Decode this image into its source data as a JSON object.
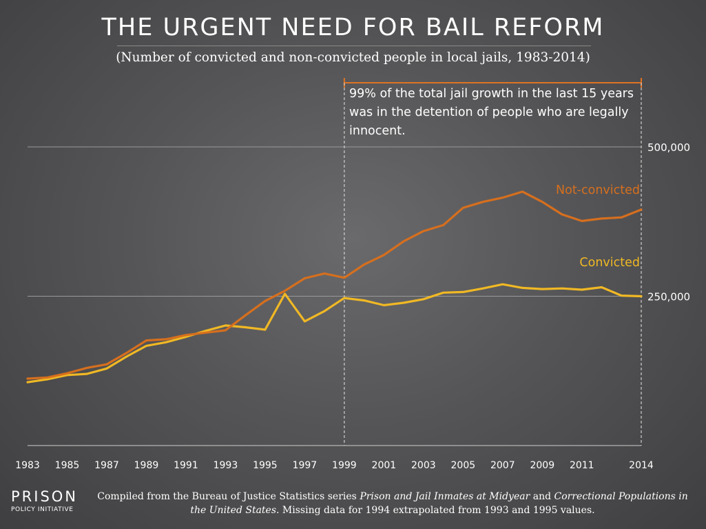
{
  "header": {
    "title": "THE URGENT NEED FOR BAIL REFORM",
    "subtitle": "(Number of convicted and non-convicted people in local jails, 1983-2014)"
  },
  "annotation": {
    "text": "99% of the total jail growth in the last 15 years was in the detention of people who are legally innocent."
  },
  "logo": {
    "top": "PRISON",
    "bottom": "POLICY INITIATIVE"
  },
  "footnote": {
    "part1": "Compiled from the Bureau of Justice Statistics series ",
    "italic1": "Prison and Jail Inmates at Midyear",
    "part2": " and ",
    "italic2": "Correctional Populations in the United States",
    "part3": ". Missing data for 1994 extrapolated from 1993 and 1995 values."
  },
  "colors": {
    "not_convicted": "#d66f1e",
    "convicted": "#f0b824",
    "bracket": "#e07322",
    "gridline": "#9a9a9a",
    "dashed": "#cfcfcf"
  },
  "chart_data": {
    "type": "line",
    "title": "THE URGENT NEED FOR BAIL REFORM",
    "x": [
      1983,
      1984,
      1985,
      1986,
      1987,
      1988,
      1989,
      1990,
      1991,
      1992,
      1993,
      1994,
      1995,
      1996,
      1997,
      1998,
      1999,
      2000,
      2001,
      2002,
      2003,
      2004,
      2005,
      2006,
      2007,
      2008,
      2009,
      2010,
      2011,
      2012,
      2013,
      2014
    ],
    "xlim": [
      1983,
      2014
    ],
    "ylim": [
      0,
      500000
    ],
    "x_tick_labels": [
      "1983",
      "1985",
      "1987",
      "1989",
      "1991",
      "1993",
      "1995",
      "1997",
      "1999",
      "2001",
      "2003",
      "2005",
      "2007",
      "2009",
      "2011",
      "2014"
    ],
    "y_ticks": [
      250000,
      500000
    ],
    "y_tick_labels": [
      "250,000",
      "500,000"
    ],
    "grid": "horizontal",
    "series": [
      {
        "name": "Not-convicted",
        "values": [
          112000,
          114000,
          121000,
          130000,
          136000,
          155000,
          176000,
          178000,
          185000,
          189000,
          193000,
          218000,
          242000,
          259000,
          280000,
          288000,
          281000,
          303000,
          319000,
          342000,
          359000,
          369000,
          398000,
          408000,
          415000,
          425000,
          408000,
          387000,
          376000,
          380000,
          382000,
          395000
        ]
      },
      {
        "name": "Convicted",
        "values": [
          106000,
          111000,
          118000,
          120000,
          129000,
          149000,
          167000,
          173000,
          182000,
          192000,
          201000,
          198000,
          194000,
          254000,
          208000,
          225000,
          247000,
          243000,
          235000,
          239000,
          245000,
          256000,
          257000,
          263000,
          270000,
          264000,
          262000,
          263000,
          261000,
          265000,
          251000,
          250000
        ]
      }
    ],
    "series_labels": [
      "Not-convicted",
      "Convicted"
    ],
    "annotation_range": [
      1999,
      2014
    ]
  }
}
